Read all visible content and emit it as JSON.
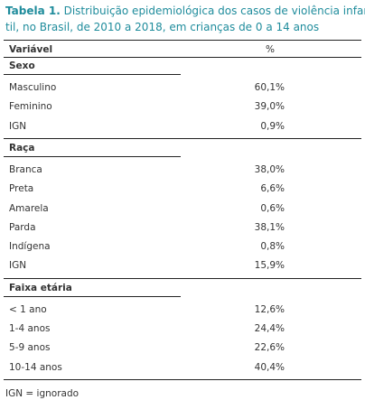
{
  "title": {
    "label": "Tabela 1.",
    "lines": [
      "Distribuição epidemiológica dos casos de violência infan-",
      "til, no Brasil, de 2010 a 2018, em crianças de 0 a 14 anos"
    ]
  },
  "table": {
    "header": [
      "Variável",
      "%"
    ],
    "sections": [
      {
        "name": "Sexo",
        "rows": [
          [
            "Masculino",
            "60,1%"
          ],
          [
            "Feminino",
            "39,0%"
          ],
          [
            "IGN",
            "0,9%"
          ]
        ]
      },
      {
        "name": "Raça",
        "rows": [
          [
            "Branca",
            "38,0%"
          ],
          [
            "Preta",
            "6,6%"
          ],
          [
            "Amarela",
            "0,6%"
          ],
          [
            "Parda",
            "38,1%"
          ],
          [
            "Indígena",
            "0,8%"
          ],
          [
            "IGN",
            "15,9%"
          ]
        ]
      },
      {
        "name": "Faixa etária",
        "rows": [
          [
            "< 1 ano",
            "12,6%"
          ],
          [
            "1-4 anos",
            "24,4%"
          ],
          [
            "5-9 anos",
            "22,6%"
          ],
          [
            "10-14 anos",
            "40,4%"
          ]
        ]
      }
    ]
  },
  "footnote": "IGN = ignorado"
}
